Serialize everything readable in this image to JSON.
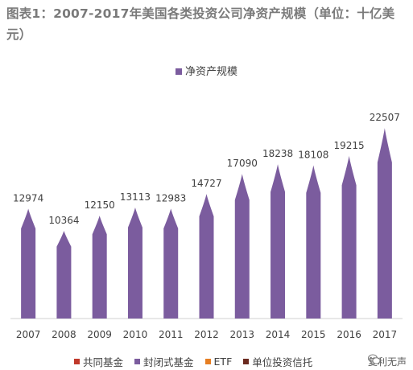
{
  "title": "图表1：2007-2017年美国各类投资公司净资产规模（单位：十亿美元）",
  "legend_top": "净资产规模",
  "bottom_legend": [
    {
      "label": "共同基金",
      "color": "#c0392b"
    },
    {
      "label": "封闭式基金",
      "color": "#7b5c9e"
    },
    {
      "label": "ETF",
      "color": "#e67e22"
    },
    {
      "label": "单位投资信托",
      "color": "#6b2a1f"
    }
  ],
  "watermark": "复利无声",
  "colors": {
    "bar": "#7b5c9e",
    "axis": "#d0d0d0",
    "label": "#404040"
  },
  "chart_data": {
    "type": "bar",
    "categories": [
      "2007",
      "2008",
      "2009",
      "2010",
      "2011",
      "2012",
      "2013",
      "2014",
      "2015",
      "2016",
      "2017"
    ],
    "values": [
      12974,
      10364,
      12150,
      13113,
      12983,
      14727,
      17090,
      18238,
      18108,
      19215,
      22507
    ],
    "ylim": [
      0,
      25000
    ],
    "grid": false,
    "legend": "top-center"
  }
}
